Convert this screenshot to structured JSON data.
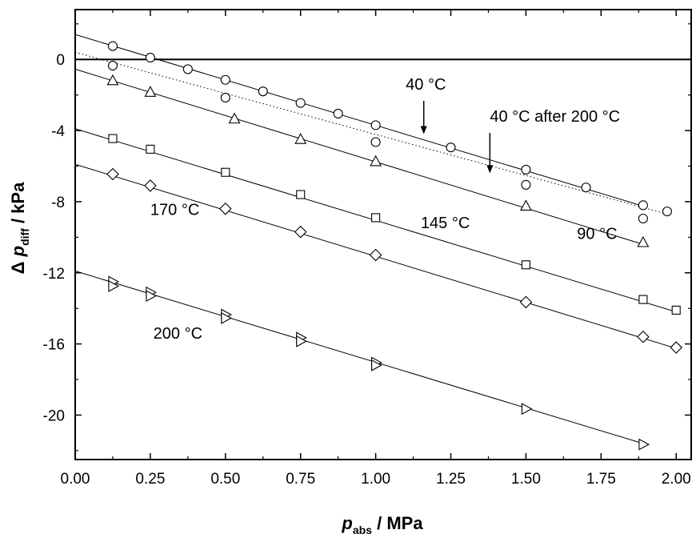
{
  "chart_data": {
    "type": "scatter",
    "xlabel": {
      "main": "p",
      "sub": "abs",
      "rest": " /  MPa"
    },
    "ylabel": {
      "prefix": "Δ ",
      "main": "p",
      "sub": "diff",
      "rest": " /  kPa"
    },
    "xlim": [
      0,
      2.05
    ],
    "ylim": [
      -22.5,
      2.8
    ],
    "xticks": [
      "0.00",
      "0.25",
      "0.50",
      "0.75",
      "1.00",
      "1.25",
      "1.50",
      "1.75",
      "2.00"
    ],
    "xtick_values": [
      0,
      0.25,
      0.5,
      0.75,
      1.0,
      1.25,
      1.5,
      1.75,
      2.0
    ],
    "yticks": [
      "0",
      "-4",
      "-8",
      "-12",
      "-16",
      "-20"
    ],
    "ytick_values": [
      0,
      -4,
      -8,
      -12,
      -16,
      -20
    ],
    "reference_line_y": 0,
    "grid": false,
    "series": [
      {
        "label": "40 °C",
        "marker": "circle",
        "line": "solid",
        "fit": [
          [
            0,
            1.4
          ],
          [
            1.9,
            -8.3
          ]
        ],
        "x": [
          0.125,
          0.25,
          0.375,
          0.5,
          0.625,
          0.75,
          0.875,
          1.0,
          1.25,
          1.5,
          1.7,
          1.89
        ],
        "y": [
          0.75,
          0.1,
          -0.55,
          -1.15,
          -1.8,
          -2.45,
          -3.05,
          -3.7,
          -4.95,
          -6.2,
          -7.2,
          -8.2
        ]
      },
      {
        "label": "40 °C after 200 °C",
        "marker": "circle",
        "line": "dotted",
        "fit": [
          [
            0,
            0.4
          ],
          [
            1.97,
            -8.7
          ]
        ],
        "x": [
          0.125,
          0.5,
          1.0,
          1.5,
          1.89,
          1.97
        ],
        "y": [
          -0.35,
          -2.15,
          -4.65,
          -7.05,
          -8.95,
          -8.55
        ]
      },
      {
        "label": "90 °C",
        "marker": "triangle-up",
        "line": "solid",
        "fit": [
          [
            0,
            -0.55
          ],
          [
            1.89,
            -10.4
          ]
        ],
        "x": [
          0.125,
          0.25,
          0.53,
          0.75,
          1.0,
          1.5,
          1.89
        ],
        "y": [
          -1.2,
          -1.85,
          -3.35,
          -4.5,
          -5.75,
          -8.25,
          -10.3
        ]
      },
      {
        "label": "145 °C",
        "marker": "square",
        "line": "solid",
        "fit": [
          [
            0,
            -3.9
          ],
          [
            2.0,
            -14.2
          ]
        ],
        "x": [
          0.125,
          0.25,
          0.5,
          0.75,
          1.0,
          1.5,
          1.89,
          2.0
        ],
        "y": [
          -4.45,
          -5.05,
          -6.35,
          -7.6,
          -8.9,
          -11.55,
          -13.5,
          -14.1
        ]
      },
      {
        "label": "170 °C",
        "marker": "diamond",
        "line": "solid",
        "fit": [
          [
            0,
            -5.9
          ],
          [
            2.0,
            -16.25
          ]
        ],
        "x": [
          0.125,
          0.25,
          0.5,
          0.75,
          1.0,
          1.5,
          1.89,
          2.0
        ],
        "y": [
          -6.45,
          -7.1,
          -8.4,
          -9.7,
          -11.0,
          -13.65,
          -15.6,
          -16.2
        ]
      },
      {
        "label": "200 °C",
        "marker": "triangle-right",
        "line": "solid",
        "fit": [
          [
            0,
            -11.9
          ],
          [
            1.89,
            -21.6
          ]
        ],
        "x": [
          0.125,
          0.125,
          0.25,
          0.25,
          0.5,
          0.5,
          0.75,
          0.75,
          1.0,
          1.0,
          1.5,
          1.89
        ],
        "y": [
          -12.5,
          -12.75,
          -13.1,
          -13.3,
          -14.35,
          -14.55,
          -15.65,
          -15.85,
          -17.05,
          -17.2,
          -19.65,
          -21.65
        ]
      }
    ],
    "annotations": [
      {
        "text": "40 °C",
        "x": 1.1,
        "y": -1.7,
        "arrow_to": [
          1.16,
          -4.2
        ]
      },
      {
        "text": "40 °C after 200 °C",
        "x": 1.38,
        "y": -3.5,
        "arrow_to": [
          1.38,
          -6.4
        ]
      },
      {
        "text": "90 °C",
        "x": 1.67,
        "y": -10.1
      },
      {
        "text": "145 °C",
        "x": 1.15,
        "y": -9.5
      },
      {
        "text": "170 °C",
        "x": 0.25,
        "y": -8.75
      },
      {
        "text": "200 °C",
        "x": 0.26,
        "y": -15.7
      }
    ]
  }
}
